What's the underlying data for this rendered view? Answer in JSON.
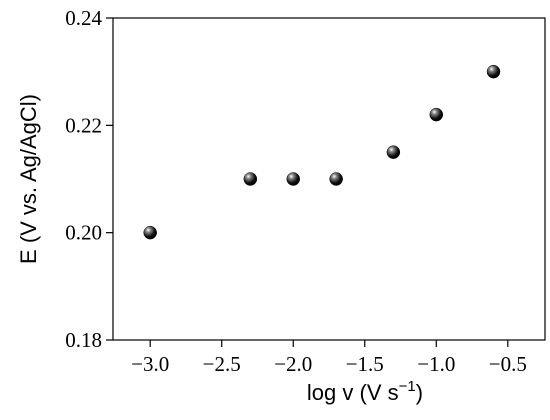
{
  "chart_data": {
    "type": "scatter",
    "x_label": {
      "text": "log v (V s",
      "superscript": "−1",
      "suffix": ")"
    },
    "y_label": "E (V vs. Ag/AgCl)",
    "x": [
      -3.0,
      -2.3,
      -2.0,
      -1.7,
      -1.3,
      -1.0,
      -0.6
    ],
    "values": [
      0.2,
      0.21,
      0.21,
      0.21,
      0.215,
      0.222,
      0.23
    ],
    "color": "#000000",
    "xlim": [
      -3.26,
      -0.24
    ],
    "ylim": [
      0.18,
      0.24
    ],
    "xticks": [
      {
        "value": -3,
        "label": "−3.0"
      },
      {
        "value": -2.5,
        "label": "−2.5"
      },
      {
        "value": -2,
        "label": "−2.0"
      },
      {
        "value": -1.5,
        "label": "−1.5"
      },
      {
        "value": -1,
        "label": "−1.0"
      },
      {
        "value": -0.5,
        "label": "−0.5"
      }
    ],
    "yticks": [
      0.18,
      {
        "value": 0.2,
        "label": "0.20"
      },
      0.22,
      0.24
    ],
    "grid": false
  }
}
